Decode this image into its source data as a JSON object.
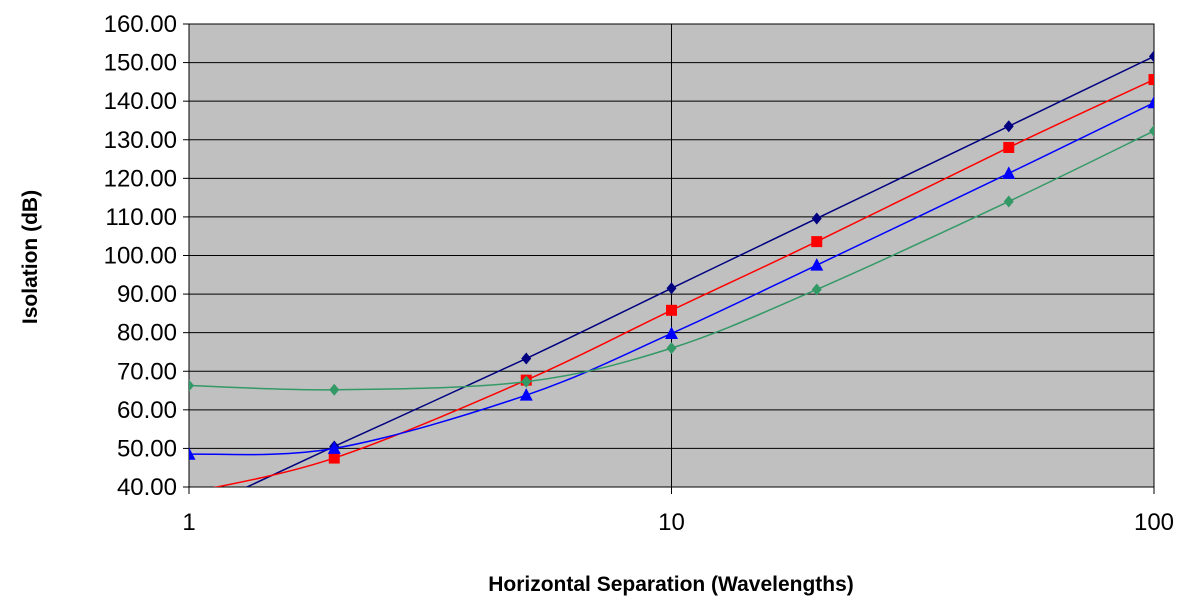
{
  "chart_data": {
    "type": "line",
    "xscale": "log",
    "xlim": [
      1,
      100
    ],
    "ylim": [
      40,
      160
    ],
    "xlabel": "Horizontal Separation (Wavelengths)",
    "ylabel": "Isolation (dB)",
    "grid": true,
    "x_ticks": [
      "1",
      "10",
      "100"
    ],
    "y_ticks": [
      "40.00",
      "50.00",
      "60.00",
      "70.00",
      "80.00",
      "90.00",
      "100.00",
      "110.00",
      "120.00",
      "130.00",
      "140.00",
      "150.00",
      "160.00"
    ],
    "plot_background": "#c0c0c0",
    "series": [
      {
        "color": "#000080",
        "marker": "diamond",
        "x": [
          1,
          2,
          5,
          10,
          20,
          50,
          100
        ],
        "y": [
          33,
          50.5,
          73.3,
          91.5,
          109.6,
          133.5,
          151.6
        ]
      },
      {
        "color": "#ff0000",
        "marker": "square",
        "x": [
          1,
          2,
          5,
          10,
          20,
          50,
          100
        ],
        "y": [
          38.5,
          47.5,
          67.7,
          85.8,
          103.6,
          128,
          145.6
        ]
      },
      {
        "color": "#0000ff",
        "marker": "triangle",
        "x": [
          1,
          2,
          5,
          10,
          20,
          50,
          100
        ],
        "y": [
          48.5,
          50,
          63.8,
          79.8,
          97.5,
          121.3,
          139.6
        ]
      },
      {
        "color": "#339966",
        "marker": "diamond",
        "x": [
          1,
          2,
          5,
          10,
          20,
          50,
          100
        ],
        "y": [
          66.3,
          65.2,
          67.3,
          76,
          91.2,
          114,
          132.3
        ]
      }
    ]
  }
}
